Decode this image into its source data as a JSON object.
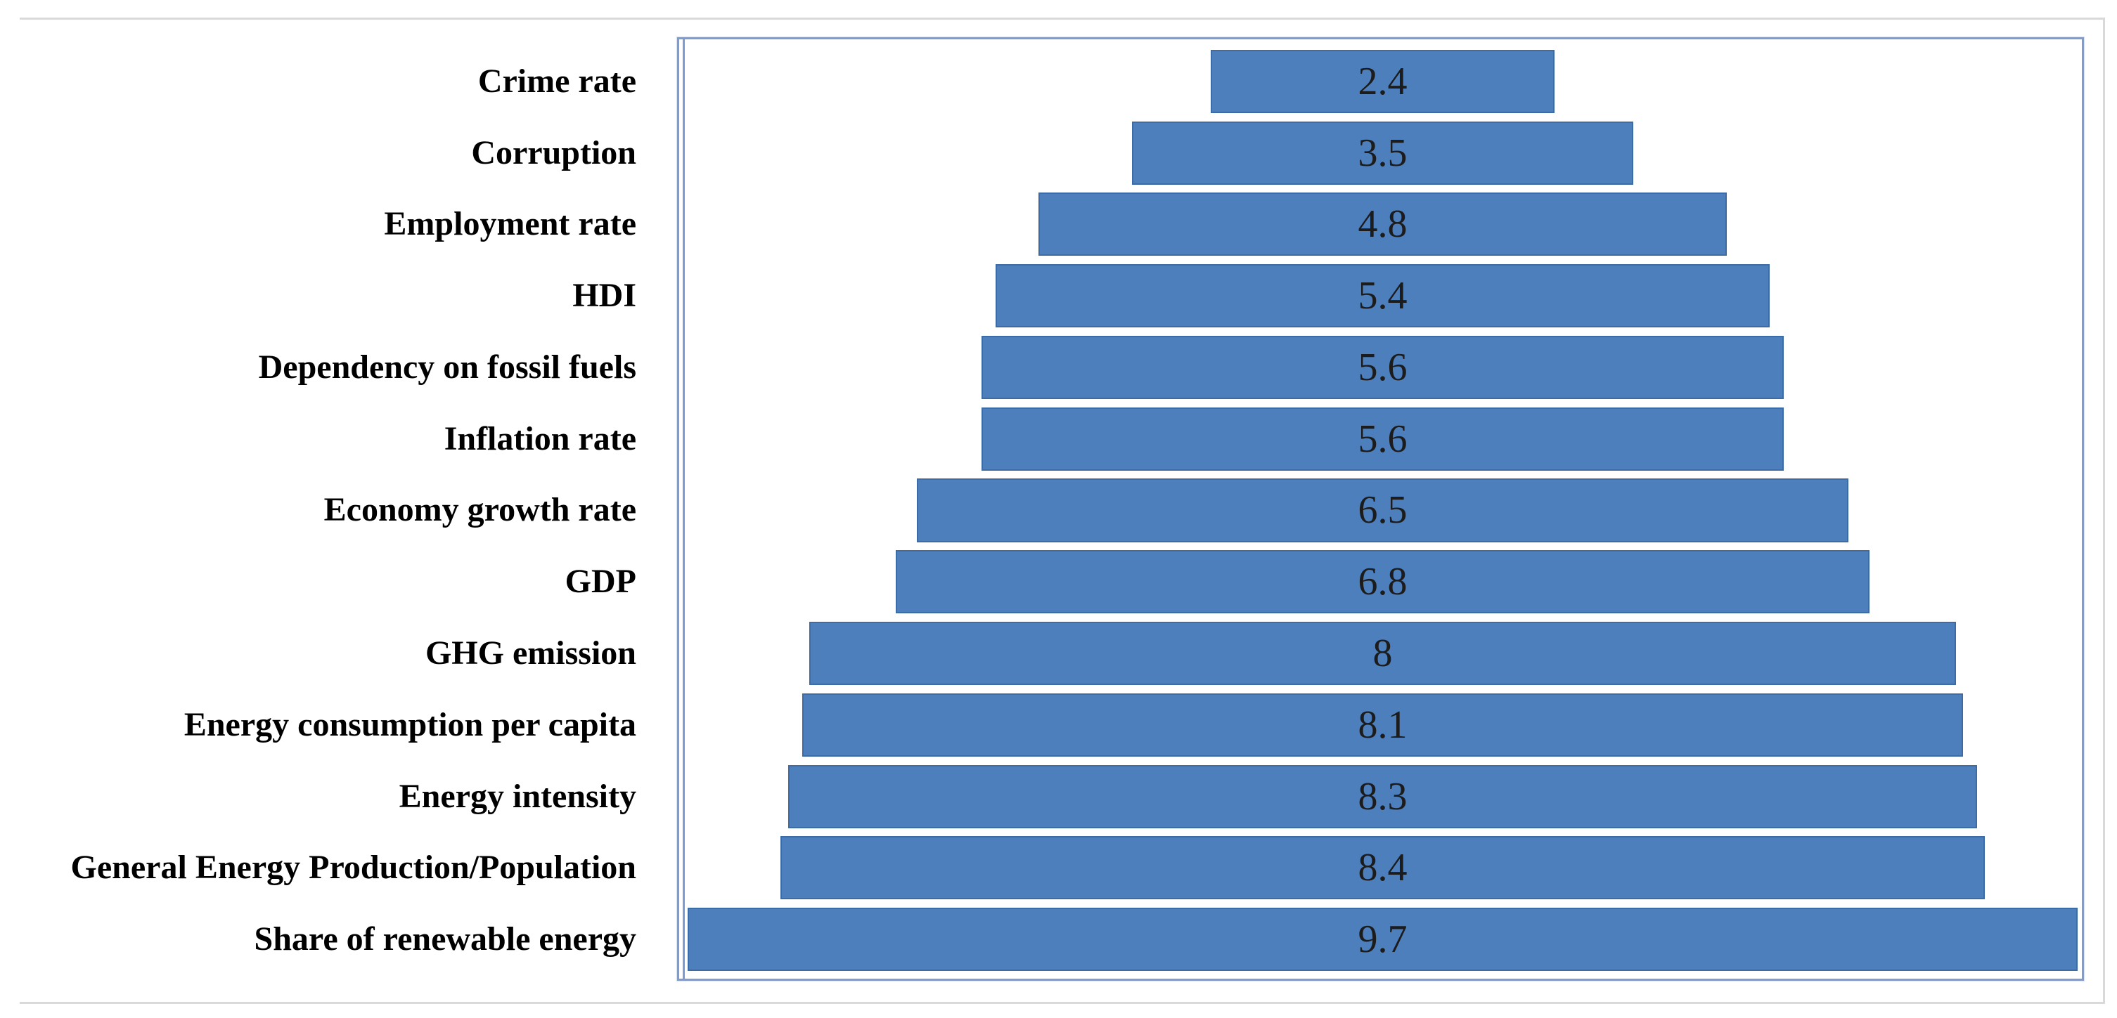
{
  "chart_data": {
    "type": "bar",
    "orientation": "horizontal_centered_funnel",
    "title": "",
    "xlabel": "",
    "ylabel": "",
    "grid": false,
    "legend": "none",
    "axis_max": 9.7,
    "categories": [
      "Crime rate",
      "Corruption",
      "Employment rate",
      "HDI",
      "Dependency on fossil fuels",
      "Inflation rate",
      "Economy growth rate",
      "GDP",
      "GHG emission",
      "Energy consumption per capita",
      "Energy intensity",
      "General Energy Production/Population",
      "Share of renewable energy"
    ],
    "values": [
      2.4,
      3.5,
      4.8,
      5.4,
      5.6,
      5.6,
      6.5,
      6.8,
      8,
      8.1,
      8.3,
      8.4,
      9.7
    ],
    "value_labels": [
      "2.4",
      "3.5",
      "4.8",
      "5.4",
      "5.6",
      "5.6",
      "6.5",
      "6.8",
      "8",
      "8.1",
      "8.3",
      "8.4",
      "9.7"
    ],
    "colors": {
      "bar_fill": "#4D7FBD",
      "bar_border": "#3D6BA6",
      "plot_border": "#7E9CD1",
      "value_text": "#1C1C1C",
      "label_text": "#000000",
      "frame_rule": "#D9D9D9",
      "background": "#FFFFFF"
    }
  }
}
